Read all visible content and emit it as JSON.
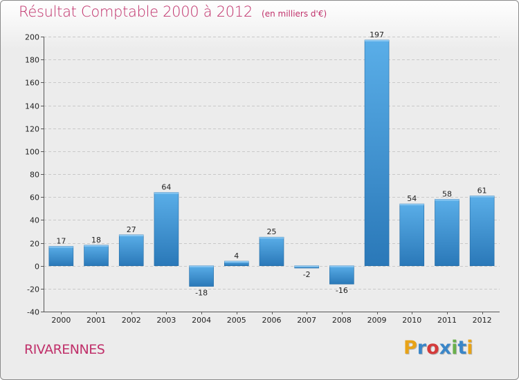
{
  "header": {
    "title": "Résultat Comptable 2000 à 2012",
    "unit": "(en milliers d'€)"
  },
  "footer": {
    "commune": "RIVARENNES",
    "logo_letters": [
      "P",
      "r",
      "o",
      "x",
      "i",
      "t",
      "i"
    ],
    "logo_colors": [
      "#e8a317",
      "#3a86c8",
      "#d43b3b",
      "#3a86c8",
      "#6ab04c",
      "#3a86c8",
      "#e8a317"
    ]
  },
  "chart_data": {
    "type": "bar",
    "title": "Résultat Comptable 2000 à 2012",
    "xlabel": "",
    "ylabel": "",
    "categories": [
      "2000",
      "2001",
      "2002",
      "2003",
      "2004",
      "2005",
      "2006",
      "2007",
      "2008",
      "2009",
      "2010",
      "2011",
      "2012"
    ],
    "values": [
      17,
      18,
      27,
      64,
      -18,
      4,
      25,
      -2,
      -16,
      197,
      54,
      58,
      61
    ],
    "labels": [
      "17",
      "18",
      "27",
      "64",
      "-18",
      "4",
      "25",
      "-2",
      "-16",
      "197",
      "54",
      "58",
      "61"
    ],
    "ylim": [
      -40,
      200
    ],
    "yticks": [
      -40,
      -20,
      0,
      20,
      40,
      60,
      80,
      100,
      120,
      140,
      160,
      180,
      200
    ],
    "grid": true,
    "bar_color_top": "#5aaee8",
    "bar_color_bottom": "#2a78b8"
  }
}
